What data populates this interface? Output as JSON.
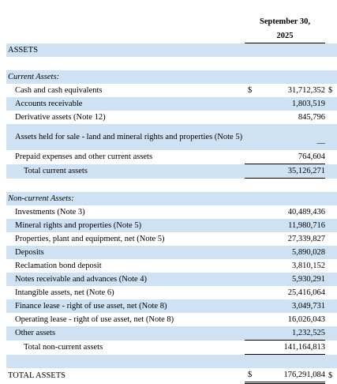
{
  "header": {
    "line1": "September 30,",
    "line2": "2025"
  },
  "rows": [
    {
      "label": "ASSETS"
    },
    {
      "label": "Current Assets:"
    },
    {
      "label": "Cash and cash equivalents",
      "currency": "$",
      "value": "31,712,352",
      "suffix": "$"
    },
    {
      "label": "Accounts receivable",
      "value": "1,803,519"
    },
    {
      "label": "Derivative assets (Note 12)",
      "value": "845,796"
    },
    {
      "label": "Assets held for sale - land and mineral rights and properties (Note 5)",
      "value": "—"
    },
    {
      "label": "Prepaid expenses and other current assets",
      "value": "764,604"
    },
    {
      "label": "Total current assets",
      "value": "35,126,271"
    },
    {
      "label": "Non-current Assets:"
    },
    {
      "label": "Investments (Note 3)",
      "value": "40,489,436"
    },
    {
      "label": "Mineral rights and properties (Note 5)",
      "value": "11,980,716"
    },
    {
      "label": "Properties, plant and equipment, net (Note 5)",
      "value": "27,339,827"
    },
    {
      "label": "Deposits",
      "value": "5,890,028"
    },
    {
      "label": "Reclamation bond deposit",
      "value": "3,810,152"
    },
    {
      "label": "Notes receivable and advances (Note 4)",
      "value": "5,930,291"
    },
    {
      "label": "Intangible assets, net (Note 6)",
      "value": "25,416,064"
    },
    {
      "label": "Finance lease - right of use asset, net (Note 8)",
      "value": "3,049,731"
    },
    {
      "label": "Operating lease - right of use asset, net (Note 8)",
      "value": "16,026,043"
    },
    {
      "label": "Other assets",
      "value": "1,232,525"
    },
    {
      "label": "Total non-current assets",
      "value": "141,164,813"
    },
    {
      "label": "TOTAL ASSETS",
      "currency": "$",
      "value": "176,291,084",
      "suffix": "$"
    }
  ]
}
